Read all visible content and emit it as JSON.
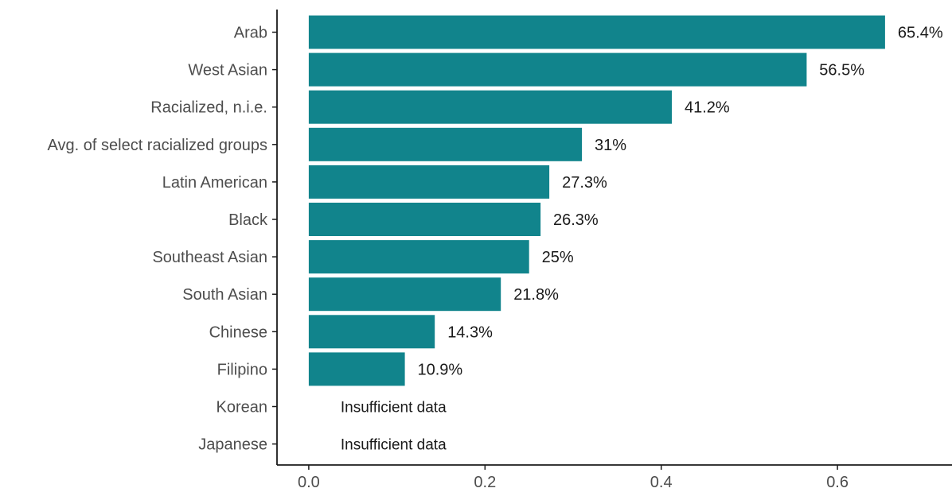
{
  "chart_data": {
    "type": "bar",
    "orientation": "horizontal",
    "title": "",
    "xlabel": "",
    "ylabel": "",
    "categories": [
      "Arab",
      "West Asian",
      "Racialized, n.i.e.",
      "Avg. of select racialized groups",
      "Latin American",
      "Black",
      "Southeast Asian",
      "South Asian",
      "Chinese",
      "Filipino",
      "Korean",
      "Japanese"
    ],
    "values": [
      0.654,
      0.565,
      0.412,
      0.31,
      0.273,
      0.263,
      0.25,
      0.218,
      0.143,
      0.109,
      null,
      null
    ],
    "value_labels": [
      "65.4%",
      "56.5%",
      "41.2%",
      "31%",
      "27.3%",
      "26.3%",
      "25%",
      "21.8%",
      "14.3%",
      "10.9%",
      "Insufficient data",
      "Insufficient data"
    ],
    "xlim": [
      -0.036,
      0.73
    ],
    "xticks": [
      0.0,
      0.2,
      0.4,
      0.6
    ],
    "xtick_labels": [
      "0.0",
      "0.2",
      "0.4",
      "0.6"
    ],
    "grid": false,
    "legend": "none",
    "colors": {
      "bar": "#11848C",
      "axis": "#1a1a1a",
      "category_text": "#4d4d4d",
      "value_text": "#1a1a1a"
    }
  }
}
